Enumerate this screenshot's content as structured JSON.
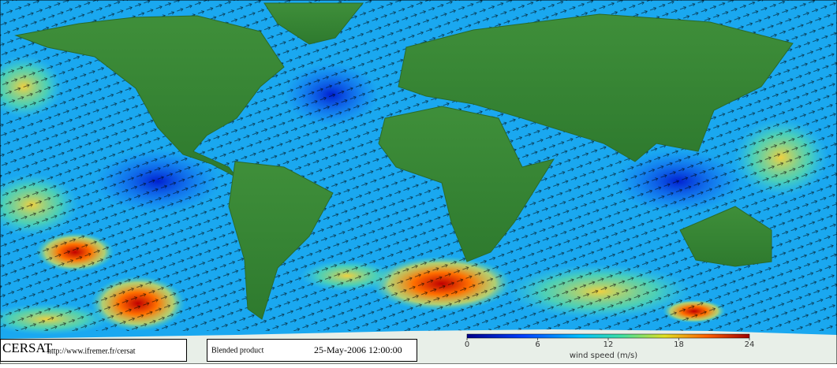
{
  "footer": {
    "logo": "CERSAT",
    "url": "http://www.ifremer.fr/cersat",
    "product": "Blended product",
    "date": "25-May-2006 12:00:00"
  },
  "colorbar": {
    "label": "wind speed (m/s)",
    "ticks": [
      0,
      6,
      12,
      18,
      24
    ]
  }
}
